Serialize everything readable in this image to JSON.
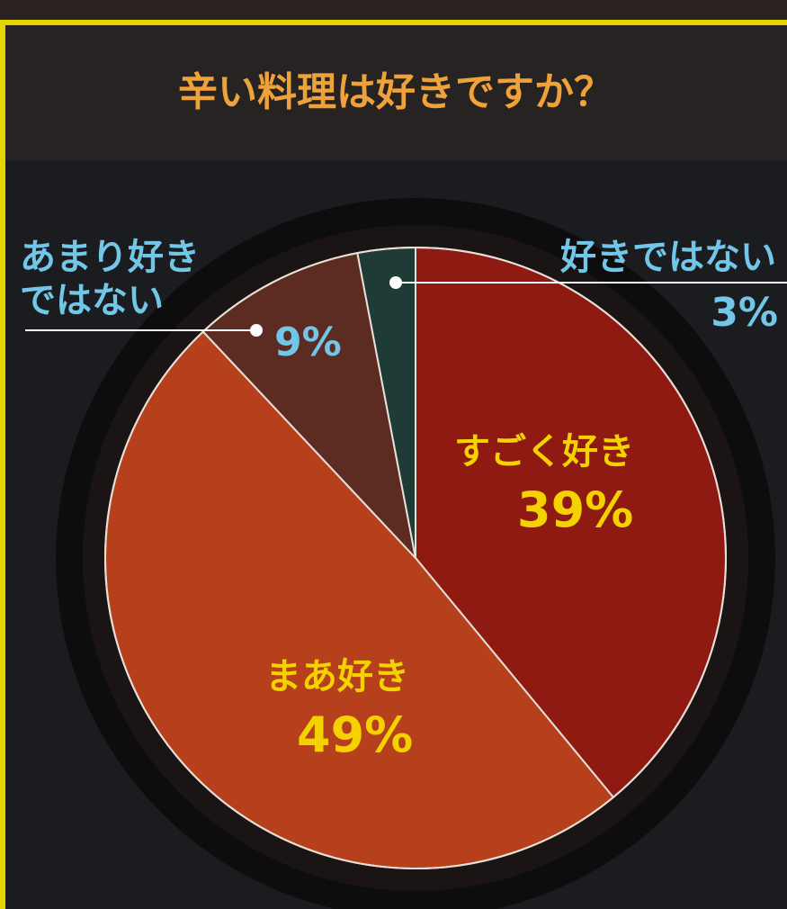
{
  "chart_data": {
    "type": "pie",
    "title": "辛い料理は好きですか？",
    "categories": [
      "すごく好き",
      "まあ好き",
      "あまり好き\nではない",
      "好きではない"
    ],
    "values": [
      39,
      49,
      9,
      3
    ],
    "value_labels": [
      "39%",
      "49%",
      "9%",
      "3%"
    ],
    "colors": [
      "#8e1a12",
      "#b63f1c",
      "#5c2c22",
      "#1f3b36"
    ]
  }
}
